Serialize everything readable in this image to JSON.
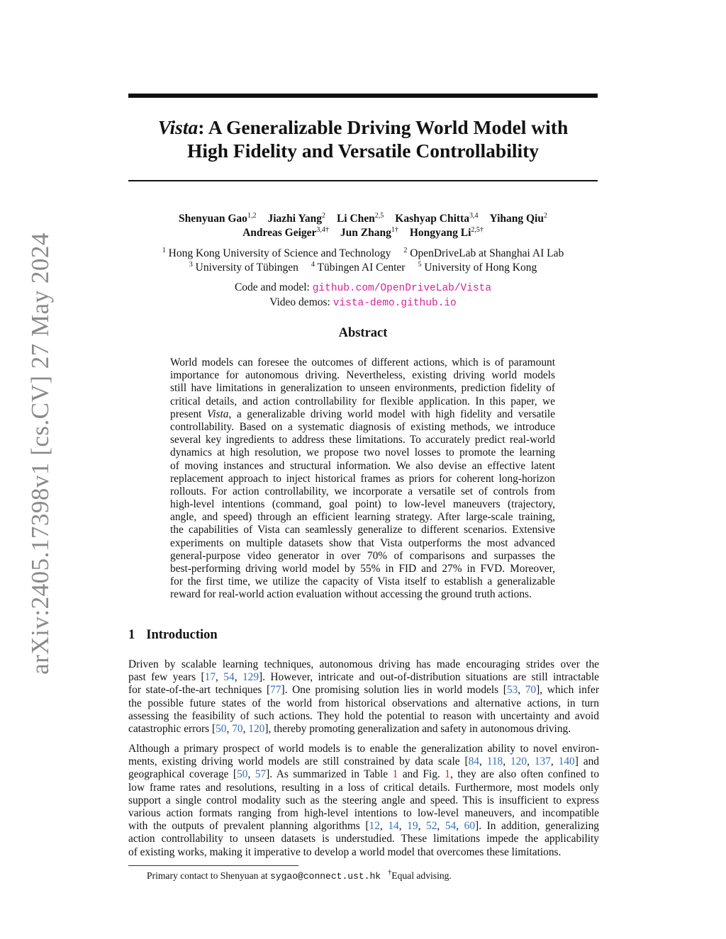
{
  "arxiv_id": "arXiv:2405.17398v1  [cs.CV]  27 May 2024",
  "title": {
    "italic": "Vista",
    "rest_line1": ": A Generalizable Driving World Model with",
    "line2": "High Fidelity and Versatile Controllability"
  },
  "authors": [
    {
      "name": "Shenyuan Gao",
      "sup": "1,2"
    },
    {
      "name": "Jiazhi Yang",
      "sup": "2"
    },
    {
      "name": "Li Chen",
      "sup": "2,5"
    },
    {
      "name": "Kashyap Chitta",
      "sup": "3,4"
    },
    {
      "name": "Yihang Qiu",
      "sup": "2"
    },
    {
      "name": "Andreas Geiger",
      "sup": "3,4†"
    },
    {
      "name": "Jun Zhang",
      "sup": "1†"
    },
    {
      "name": "Hongyang Li",
      "sup": "2,5†"
    }
  ],
  "affiliations": [
    {
      "num": "1",
      "name": "Hong Kong University of Science and Technology"
    },
    {
      "num": "2",
      "name": "OpenDriveLab at Shanghai AI Lab"
    },
    {
      "num": "3",
      "name": "University of Tübingen"
    },
    {
      "num": "4",
      "name": "Tübingen AI Center"
    },
    {
      "num": "5",
      "name": "University of Hong Kong"
    }
  ],
  "links": {
    "code_label": "Code and model: ",
    "code_url": "github.com/OpenDriveLab/Vista",
    "video_label": "Video demos: ",
    "video_url": "vista-demo.github.io"
  },
  "abstract": {
    "heading": "Abstract",
    "lines": [
      "World models can foresee the outcomes of different actions, which is of paramount",
      "importance for autonomous driving. Nevertheless, existing driving world models",
      "still have limitations in generalization to unseen environments, prediction fidelity of",
      "critical details, and action controllability for flexible application. In this paper, we",
      "present Vista, a generalizable driving world model with high fidelity and versatile",
      "controllability. Based on a systematic diagnosis of existing methods, we introduce",
      "several key ingredients to address these limitations. To accurately predict real-world",
      "dynamics at high resolution, we propose two novel losses to promote the learning",
      "of moving instances and structural information. We also devise an effective latent",
      "replacement approach to inject historical frames as priors for coherent long-horizon",
      "rollouts. For action controllability, we incorporate a versatile set of controls from",
      "high-level intentions (command, goal point) to low-level maneuvers (trajectory,",
      "angle, and speed) through an efficient learning strategy. After large-scale training,",
      "the capabilities of Vista can seamlessly generalize to different scenarios. Extensive",
      "experiments on multiple datasets show that Vista outperforms the most advanced",
      "general-purpose video generator in over 70% of comparisons and surpasses the",
      "best-performing driving world model by 55% in FID and 27% in FVD. Moreover,",
      "for the first time, we utilize the capacity of Vista itself to establish a generalizable",
      "reward for real-world action evaluation without accessing the ground truth actions."
    ]
  },
  "introduction": {
    "number": "1",
    "heading": "Introduction",
    "paragraph1": [
      "Driven by scalable learning techniques, autonomous driving has made encouraging strides over the",
      "past few years [17, 54, 129]. However, intricate and out-of-distribution situations are still intractable",
      "for state-of-the-art techniques [77]. One promising solution lies in world models [53, 70], which infer",
      "the possible future states of the world from historical observations and alternative actions, in turn",
      "assessing the feasibility of such actions. They hold the potential to reason with uncertainty and avoid",
      "catastrophic errors [50, 70, 120], thereby promoting generalization and safety in autonomous driving."
    ],
    "paragraph2": [
      "Although a primary prospect of world models is to enable the generalization ability to novel environ-",
      "ments, existing driving world models are still constrained by data scale [84, 118, 120, 137, 140] and",
      "geographical coverage [50, 57]. As summarized in Table 1 and Fig. 1, they are also often confined to",
      "low frame rates and resolutions, resulting in a loss of critical details. Furthermore, most models only",
      "support a single control modality such as the steering angle and speed. This is insufficient to express",
      "various action formats ranging from high-level intentions to low-level maneuvers, and incompatible",
      "with the outputs of prevalent planning algorithms [12, 14, 19, 52, 54, 60]. In addition, generalizing",
      "action controllability to unseen datasets is understudied. These limitations impede the applicability",
      "of existing works, making it imperative to develop a world model that overcomes these limitations."
    ]
  },
  "footnote": {
    "text": "Primary contact to Shenyuan at ",
    "email": "sygao@connect.ust.hk",
    "dagger": "†",
    "note": "Equal advising."
  },
  "colors": {
    "citation": "#3a6fb5",
    "reference": "#d62020",
    "url": "#d6219c",
    "side_text": "#8a8a8a"
  }
}
